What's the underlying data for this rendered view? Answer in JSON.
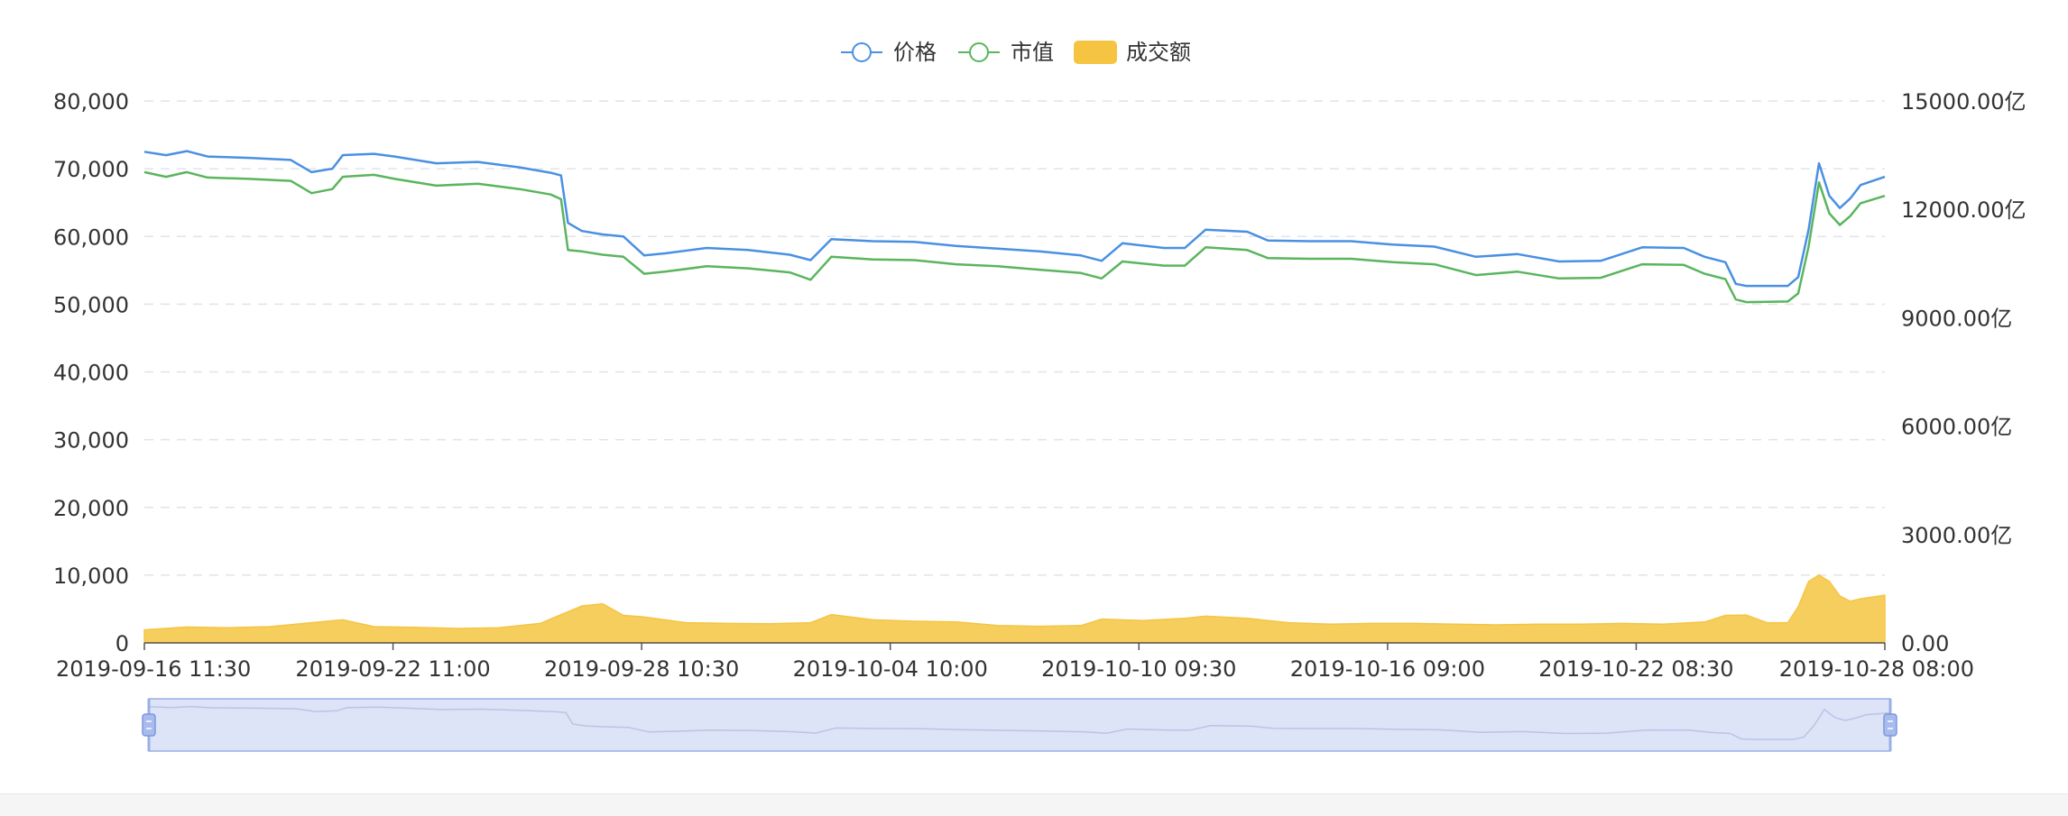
{
  "colors": {
    "price": "#4a90e2",
    "market_cap": "#5ab55e",
    "volume": "#f5c542",
    "grid": "#e0e3ea",
    "axis_text": "#333333",
    "zoom_fill": "#dde4f8",
    "zoom_border": "#9aafe6"
  },
  "chart_data": {
    "type": "line",
    "legend": {
      "position": "top-center",
      "items": [
        {
          "key": "price",
          "label": "价格",
          "symbol": "line-circle"
        },
        {
          "key": "market_cap",
          "label": "市值",
          "symbol": "line-circle"
        },
        {
          "key": "volume",
          "label": "成交额",
          "symbol": "rect"
        }
      ]
    },
    "x_axis": {
      "type": "time",
      "start": "2019-09-16 11:30",
      "end": "2019-10-28 08:00",
      "tick_labels": [
        "2019-09-16 11:30",
        "2019-09-22 11:00",
        "2019-09-28 10:30",
        "2019-10-04 10:00",
        "2019-10-10 09:30",
        "2019-10-16 09:00",
        "2019-10-22 08:30",
        "2019-10-28 08:00"
      ]
    },
    "y_axis_left": {
      "range": [
        0,
        80000
      ],
      "tick_labels": [
        "0",
        "10,000",
        "20,000",
        "30,000",
        "40,000",
        "50,000",
        "60,000",
        "70,000",
        "80,000"
      ],
      "grid": true
    },
    "y_axis_right": {
      "range": [
        0,
        15000
      ],
      "unit": "亿",
      "tick_labels": [
        "0.00",
        "3000.00亿",
        "6000.00亿",
        "9000.00亿",
        "12000.00亿",
        "15000.00亿"
      ]
    },
    "data_zoom": {
      "type": "slider",
      "start_percent": 0,
      "end_percent": 100
    },
    "series": [
      {
        "key": "price",
        "name": "价格",
        "type": "line",
        "y_axis": "left",
        "points": [
          [
            "2019-09-16 11:30",
            72500
          ],
          [
            "2019-09-17 00:00",
            72000
          ],
          [
            "2019-09-17 12:00",
            72600
          ],
          [
            "2019-09-18 00:00",
            71800
          ],
          [
            "2019-09-19 00:00",
            71600
          ],
          [
            "2019-09-20 00:00",
            71300
          ],
          [
            "2019-09-20 12:00",
            69500
          ],
          [
            "2019-09-21 00:00",
            70000
          ],
          [
            "2019-09-21 06:00",
            72000
          ],
          [
            "2019-09-22 00:00",
            72200
          ],
          [
            "2019-09-22 12:00",
            71800
          ],
          [
            "2019-09-23 12:00",
            70800
          ],
          [
            "2019-09-24 12:00",
            71000
          ],
          [
            "2019-09-25 12:00",
            70200
          ],
          [
            "2019-09-26 06:00",
            69400
          ],
          [
            "2019-09-26 12:00",
            69000
          ],
          [
            "2019-09-26 16:00",
            62000
          ],
          [
            "2019-09-27 00:00",
            60800
          ],
          [
            "2019-09-27 12:00",
            60300
          ],
          [
            "2019-09-28 00:00",
            60000
          ],
          [
            "2019-09-28 12:00",
            57200
          ],
          [
            "2019-09-29 00:00",
            57500
          ],
          [
            "2019-09-30 00:00",
            58300
          ],
          [
            "2019-10-01 00:00",
            58000
          ],
          [
            "2019-10-02 00:00",
            57300
          ],
          [
            "2019-10-02 12:00",
            56500
          ],
          [
            "2019-10-03 00:00",
            59600
          ],
          [
            "2019-10-04 00:00",
            59300
          ],
          [
            "2019-10-05 00:00",
            59200
          ],
          [
            "2019-10-06 00:00",
            58600
          ],
          [
            "2019-10-07 00:00",
            58200
          ],
          [
            "2019-10-08 00:00",
            57800
          ],
          [
            "2019-10-09 00:00",
            57200
          ],
          [
            "2019-10-09 12:00",
            56400
          ],
          [
            "2019-10-10 00:00",
            59000
          ],
          [
            "2019-10-11 00:00",
            58300
          ],
          [
            "2019-10-11 12:00",
            58300
          ],
          [
            "2019-10-12 00:00",
            61000
          ],
          [
            "2019-10-13 00:00",
            60700
          ],
          [
            "2019-10-13 12:00",
            59400
          ],
          [
            "2019-10-14 12:00",
            59300
          ],
          [
            "2019-10-15 12:00",
            59300
          ],
          [
            "2019-10-16 12:00",
            58800
          ],
          [
            "2019-10-17 12:00",
            58500
          ],
          [
            "2019-10-18 12:00",
            57000
          ],
          [
            "2019-10-19 12:00",
            57400
          ],
          [
            "2019-10-20 12:00",
            56300
          ],
          [
            "2019-10-21 12:00",
            56400
          ],
          [
            "2019-10-22 12:00",
            58400
          ],
          [
            "2019-10-23 12:00",
            58300
          ],
          [
            "2019-10-24 00:00",
            57000
          ],
          [
            "2019-10-24 12:00",
            56200
          ],
          [
            "2019-10-24 18:00",
            53000
          ],
          [
            "2019-10-25 00:00",
            52700
          ],
          [
            "2019-10-26 00:00",
            52700
          ],
          [
            "2019-10-26 06:00",
            54000
          ],
          [
            "2019-10-26 12:00",
            61000
          ],
          [
            "2019-10-26 18:00",
            70800
          ],
          [
            "2019-10-27 00:00",
            66000
          ],
          [
            "2019-10-27 06:00",
            64200
          ],
          [
            "2019-10-27 12:00",
            65600
          ],
          [
            "2019-10-27 18:00",
            67600
          ],
          [
            "2019-10-28 08:00",
            68800
          ]
        ]
      },
      {
        "key": "market_cap",
        "name": "市值",
        "type": "line",
        "y_axis": "left",
        "points": [
          [
            "2019-09-16 11:30",
            69500
          ],
          [
            "2019-09-17 00:00",
            68800
          ],
          [
            "2019-09-17 12:00",
            69500
          ],
          [
            "2019-09-18 00:00",
            68700
          ],
          [
            "2019-09-19 00:00",
            68500
          ],
          [
            "2019-09-20 00:00",
            68200
          ],
          [
            "2019-09-20 12:00",
            66400
          ],
          [
            "2019-09-21 00:00",
            67000
          ],
          [
            "2019-09-21 06:00",
            68800
          ],
          [
            "2019-09-22 00:00",
            69100
          ],
          [
            "2019-09-22 12:00",
            68500
          ],
          [
            "2019-09-23 12:00",
            67500
          ],
          [
            "2019-09-24 12:00",
            67800
          ],
          [
            "2019-09-25 12:00",
            67000
          ],
          [
            "2019-09-26 06:00",
            66200
          ],
          [
            "2019-09-26 12:00",
            65500
          ],
          [
            "2019-09-26 16:00",
            58000
          ],
          [
            "2019-09-27 00:00",
            57800
          ],
          [
            "2019-09-27 12:00",
            57300
          ],
          [
            "2019-09-28 00:00",
            57000
          ],
          [
            "2019-09-28 12:00",
            54500
          ],
          [
            "2019-09-29 00:00",
            54800
          ],
          [
            "2019-09-30 00:00",
            55600
          ],
          [
            "2019-10-01 00:00",
            55300
          ],
          [
            "2019-10-02 00:00",
            54700
          ],
          [
            "2019-10-02 12:00",
            53600
          ],
          [
            "2019-10-03 00:00",
            57000
          ],
          [
            "2019-10-04 00:00",
            56600
          ],
          [
            "2019-10-05 00:00",
            56500
          ],
          [
            "2019-10-06 00:00",
            55900
          ],
          [
            "2019-10-07 00:00",
            55600
          ],
          [
            "2019-10-08 00:00",
            55100
          ],
          [
            "2019-10-09 00:00",
            54600
          ],
          [
            "2019-10-09 12:00",
            53800
          ],
          [
            "2019-10-10 00:00",
            56300
          ],
          [
            "2019-10-11 00:00",
            55700
          ],
          [
            "2019-10-11 12:00",
            55700
          ],
          [
            "2019-10-12 00:00",
            58400
          ],
          [
            "2019-10-13 00:00",
            58000
          ],
          [
            "2019-10-13 12:00",
            56800
          ],
          [
            "2019-10-14 12:00",
            56700
          ],
          [
            "2019-10-15 12:00",
            56700
          ],
          [
            "2019-10-16 12:00",
            56200
          ],
          [
            "2019-10-17 12:00",
            55900
          ],
          [
            "2019-10-18 12:00",
            54300
          ],
          [
            "2019-10-19 12:00",
            54800
          ],
          [
            "2019-10-20 12:00",
            53800
          ],
          [
            "2019-10-21 12:00",
            53900
          ],
          [
            "2019-10-22 12:00",
            55900
          ],
          [
            "2019-10-23 12:00",
            55800
          ],
          [
            "2019-10-24 00:00",
            54500
          ],
          [
            "2019-10-24 12:00",
            53700
          ],
          [
            "2019-10-24 18:00",
            50700
          ],
          [
            "2019-10-25 00:00",
            50300
          ],
          [
            "2019-10-26 00:00",
            50400
          ],
          [
            "2019-10-26 06:00",
            51600
          ],
          [
            "2019-10-26 12:00",
            58500
          ],
          [
            "2019-10-26 18:00",
            68000
          ],
          [
            "2019-10-27 00:00",
            63400
          ],
          [
            "2019-10-27 06:00",
            61700
          ],
          [
            "2019-10-27 12:00",
            63000
          ],
          [
            "2019-10-27 18:00",
            64900
          ],
          [
            "2019-10-28 08:00",
            66000
          ]
        ]
      },
      {
        "key": "volume",
        "name": "成交额",
        "type": "area",
        "y_axis": "right",
        "unit": "亿",
        "points": [
          [
            "2019-09-16 11:30",
            360
          ],
          [
            "2019-09-17 12:00",
            440
          ],
          [
            "2019-09-18 12:00",
            420
          ],
          [
            "2019-09-19 12:00",
            450
          ],
          [
            "2019-09-20 12:00",
            560
          ],
          [
            "2019-09-21 06:00",
            640
          ],
          [
            "2019-09-22 00:00",
            450
          ],
          [
            "2019-09-23 00:00",
            430
          ],
          [
            "2019-09-24 00:00",
            400
          ],
          [
            "2019-09-25 00:00",
            420
          ],
          [
            "2019-09-26 00:00",
            540
          ],
          [
            "2019-09-26 12:00",
            780
          ],
          [
            "2019-09-27 00:00",
            1020
          ],
          [
            "2019-09-27 12:00",
            1080
          ],
          [
            "2019-09-28 00:00",
            760
          ],
          [
            "2019-09-28 12:00",
            720
          ],
          [
            "2019-09-29 12:00",
            560
          ],
          [
            "2019-09-30 12:00",
            540
          ],
          [
            "2019-10-01 12:00",
            530
          ],
          [
            "2019-10-02 12:00",
            560
          ],
          [
            "2019-10-03 00:00",
            780
          ],
          [
            "2019-10-04 00:00",
            640
          ],
          [
            "2019-10-05 00:00",
            600
          ],
          [
            "2019-10-06 00:00",
            580
          ],
          [
            "2019-10-07 00:00",
            480
          ],
          [
            "2019-10-08 00:00",
            460
          ],
          [
            "2019-10-09 00:00",
            480
          ],
          [
            "2019-10-09 12:00",
            660
          ],
          [
            "2019-10-10 12:00",
            620
          ],
          [
            "2019-10-11 12:00",
            680
          ],
          [
            "2019-10-12 00:00",
            740
          ],
          [
            "2019-10-13 00:00",
            680
          ],
          [
            "2019-10-14 00:00",
            560
          ],
          [
            "2019-10-15 00:00",
            520
          ],
          [
            "2019-10-16 00:00",
            540
          ],
          [
            "2019-10-17 00:00",
            540
          ],
          [
            "2019-10-18 00:00",
            520
          ],
          [
            "2019-10-19 00:00",
            500
          ],
          [
            "2019-10-20 00:00",
            520
          ],
          [
            "2019-10-21 00:00",
            520
          ],
          [
            "2019-10-22 00:00",
            540
          ],
          [
            "2019-10-23 00:00",
            520
          ],
          [
            "2019-10-24 00:00",
            580
          ],
          [
            "2019-10-24 12:00",
            760
          ],
          [
            "2019-10-25 00:00",
            770
          ],
          [
            "2019-10-25 12:00",
            560
          ],
          [
            "2019-10-26 00:00",
            560
          ],
          [
            "2019-10-26 06:00",
            1000
          ],
          [
            "2019-10-26 12:00",
            1700
          ],
          [
            "2019-10-26 18:00",
            1880
          ],
          [
            "2019-10-27 00:00",
            1700
          ],
          [
            "2019-10-27 06:00",
            1300
          ],
          [
            "2019-10-27 12:00",
            1150
          ],
          [
            "2019-10-27 18:00",
            1220
          ],
          [
            "2019-10-28 08:00",
            1320
          ]
        ]
      }
    ]
  }
}
